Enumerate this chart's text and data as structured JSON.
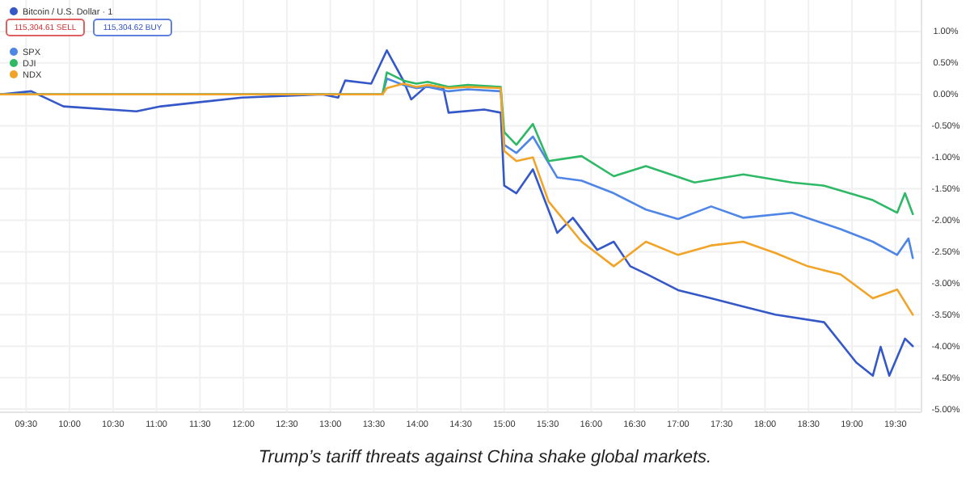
{
  "chart_data": {
    "type": "line",
    "annotations": [
      "Trump’s tariff threats against China shake global markets.",
      "115,304.61 SELL",
      "115,304.62 BUY"
    ],
    "xlim": [
      9.2,
      19.8
    ],
    "ylim": [
      -5.05,
      1.5
    ],
    "xticks": [
      {
        "value": 9.5,
        "label": "09:30"
      },
      {
        "value": 10,
        "label": "10:00"
      },
      {
        "value": 10.5,
        "label": "10:30"
      },
      {
        "value": 11,
        "label": "11:00"
      },
      {
        "value": 11.5,
        "label": "11:30"
      },
      {
        "value": 12,
        "label": "12:00"
      },
      {
        "value": 12.5,
        "label": "12:30"
      },
      {
        "value": 13,
        "label": "13:00"
      },
      {
        "value": 13.5,
        "label": "13:30"
      },
      {
        "value": 14,
        "label": "14:00"
      },
      {
        "value": 14.5,
        "label": "14:30"
      },
      {
        "value": 15,
        "label": "15:00"
      },
      {
        "value": 15.5,
        "label": "15:30"
      },
      {
        "value": 16,
        "label": "16:00"
      },
      {
        "value": 16.5,
        "label": "16:30"
      },
      {
        "value": 17,
        "label": "17:00"
      },
      {
        "value": 17.5,
        "label": "17:30"
      },
      {
        "value": 18,
        "label": "18:00"
      },
      {
        "value": 18.5,
        "label": "18:30"
      },
      {
        "value": 19,
        "label": "19:00"
      },
      {
        "value": 19.5,
        "label": "19:30"
      }
    ],
    "yticks": [
      {
        "value": 1,
        "label": "1.00%"
      },
      {
        "value": 0.5,
        "label": "0.50%"
      },
      {
        "value": 0,
        "label": "0.00%"
      },
      {
        "value": -0.5,
        "label": "-0.50%"
      },
      {
        "value": -1,
        "label": "-1.00%"
      },
      {
        "value": -1.5,
        "label": "-1.50%"
      },
      {
        "value": -2,
        "label": "-2.00%"
      },
      {
        "value": -2.5,
        "label": "-2.50%"
      },
      {
        "value": -3,
        "label": "-3.00%"
      },
      {
        "value": -3.5,
        "label": "-3.50%"
      },
      {
        "value": -4,
        "label": "-4.00%"
      },
      {
        "value": -4.5,
        "label": "-4.50%"
      },
      {
        "value": -5,
        "label": "-5.00%"
      }
    ],
    "grid": true,
    "legend": "top left",
    "series": [
      {
        "name": "Bitcoin / U.S. Dollar · 1",
        "color": "#3558c8",
        "x": [
          9.2,
          9.56,
          9.93,
          10.77,
          11.05,
          11.98,
          12.91,
          13.09,
          13.17,
          13.47,
          13.65,
          13.84,
          13.93,
          14.12,
          14.3,
          14.36,
          14.77,
          14.96,
          15.0,
          15.14,
          15.33,
          15.61,
          15.79,
          16.07,
          16.26,
          16.45,
          16.63,
          17.0,
          17.38,
          17.75,
          18.12,
          18.68,
          19.05,
          19.24,
          19.33,
          19.43,
          19.61,
          19.7
        ],
        "values": [
          0,
          0.05,
          -0.19,
          -0.27,
          -0.19,
          -0.05,
          0,
          -0.05,
          0.22,
          0.17,
          0.7,
          0.22,
          -0.08,
          0.15,
          0.1,
          -0.29,
          -0.24,
          -0.29,
          -1.45,
          -1.57,
          -1.19,
          -2.2,
          -1.96,
          -2.47,
          -2.34,
          -2.73,
          -2.85,
          -3.11,
          -3.24,
          -3.37,
          -3.5,
          -3.62,
          -4.26,
          -4.47,
          -4.01,
          -4.47,
          -3.88,
          -4.0
        ]
      },
      {
        "name": "SPX",
        "color": "#4f86e6",
        "x": [
          9.2,
          13.6,
          13.65,
          13.84,
          13.99,
          14.12,
          14.36,
          14.58,
          14.96,
          15.0,
          15.14,
          15.33,
          15.61,
          15.89,
          16.26,
          16.63,
          17.0,
          17.38,
          17.75,
          18.31,
          18.87,
          19.24,
          19.52,
          19.65,
          19.7
        ],
        "values": [
          0,
          0,
          0.25,
          0.15,
          0.1,
          0.12,
          0.05,
          0.08,
          0.05,
          -0.8,
          -0.93,
          -0.67,
          -1.32,
          -1.37,
          -1.57,
          -1.83,
          -1.98,
          -1.78,
          -1.96,
          -1.88,
          -2.14,
          -2.34,
          -2.55,
          -2.29,
          -2.6
        ]
      },
      {
        "name": "DJI",
        "color": "#2fb866",
        "x": [
          9.2,
          13.6,
          13.65,
          13.84,
          13.99,
          14.12,
          14.36,
          14.58,
          14.96,
          15.0,
          15.14,
          15.33,
          15.51,
          15.89,
          16.26,
          16.63,
          17.19,
          17.75,
          18.31,
          18.68,
          19.24,
          19.52,
          19.61,
          19.7
        ],
        "values": [
          0,
          0,
          0.35,
          0.22,
          0.17,
          0.2,
          0.12,
          0.15,
          0.12,
          -0.6,
          -0.8,
          -0.47,
          -1.06,
          -0.98,
          -1.3,
          -1.14,
          -1.4,
          -1.27,
          -1.4,
          -1.45,
          -1.68,
          -1.88,
          -1.57,
          -1.9
        ]
      },
      {
        "name": "NDX",
        "color": "#f2a428",
        "x": [
          9.2,
          13.6,
          13.65,
          13.84,
          13.99,
          14.12,
          14.36,
          14.58,
          14.96,
          15.0,
          15.14,
          15.33,
          15.51,
          15.89,
          16.26,
          16.63,
          17.0,
          17.38,
          17.75,
          18.12,
          18.49,
          18.87,
          19.24,
          19.52,
          19.7
        ],
        "values": [
          0,
          0,
          0.1,
          0.17,
          0.12,
          0.15,
          0.1,
          0.12,
          0.1,
          -0.9,
          -1.06,
          -1.0,
          -1.7,
          -2.34,
          -2.73,
          -2.34,
          -2.55,
          -2.4,
          -2.34,
          -2.52,
          -2.73,
          -2.86,
          -3.24,
          -3.1,
          -3.5
        ]
      }
    ]
  }
}
